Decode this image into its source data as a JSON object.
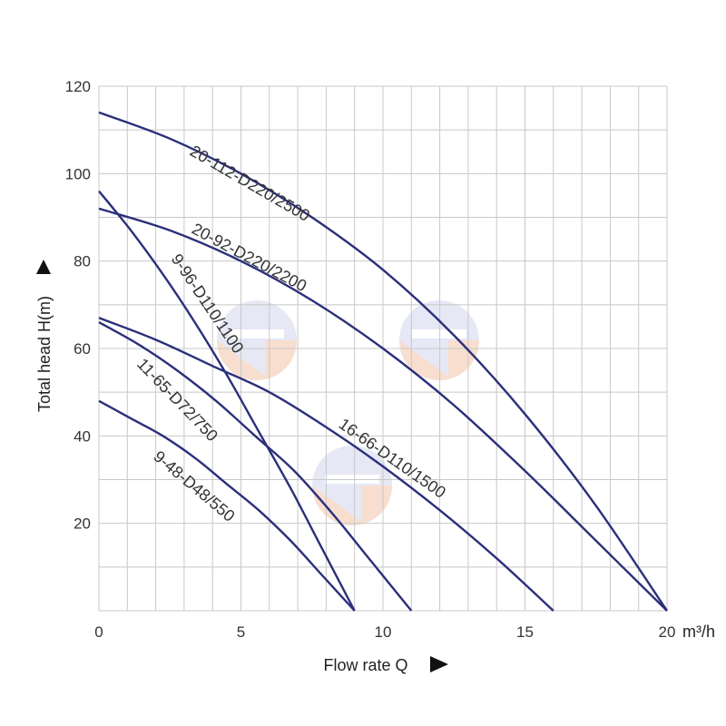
{
  "chart_data": {
    "type": "line",
    "xlabel": "Flow rate Q",
    "ylabel": "Total head H(m)",
    "x_unit": "m³/h",
    "xlim": [
      0,
      20
    ],
    "ylim": [
      0,
      120
    ],
    "x_ticks": [
      "0",
      "5",
      "10",
      "15",
      "20"
    ],
    "y_ticks": [
      "20",
      "40",
      "60",
      "80",
      "100",
      "120"
    ],
    "grid": true,
    "line_color": "#2b2f7a",
    "grid_color": "#c8c8c8",
    "series": [
      {
        "name": "20-112-D220/2500",
        "x": [
          0,
          2.5,
          5,
          7.5,
          10,
          12.5,
          15,
          17.5,
          20
        ],
        "y": [
          114,
          108,
          100,
          90,
          78,
          63,
          45,
          24,
          0
        ]
      },
      {
        "name": "20-92-D220/2200",
        "x": [
          0,
          2.5,
          5,
          7.5,
          10,
          12.5,
          15,
          17.5,
          20
        ],
        "y": [
          92,
          87,
          80,
          71,
          60,
          47,
          32,
          16,
          0
        ]
      },
      {
        "name": "9-96-D110/1100",
        "x": [
          0,
          1.125,
          2.25,
          3.375,
          4.5,
          5.625,
          6.75,
          7.875,
          9
        ],
        "y": [
          96,
          87,
          77,
          66,
          54,
          41,
          28,
          14,
          0
        ]
      },
      {
        "name": "16-66-D110/1500",
        "x": [
          0,
          2,
          4,
          6,
          8,
          10,
          12,
          14,
          16
        ],
        "y": [
          67,
          62,
          56,
          50,
          42,
          33,
          23,
          12,
          0
        ]
      },
      {
        "name": "11-65-D72/750",
        "x": [
          0,
          1.375,
          2.75,
          4.125,
          5.5,
          6.875,
          8.25,
          9.625,
          11
        ],
        "y": [
          66,
          61,
          55,
          48,
          40,
          32,
          22,
          11,
          0
        ]
      },
      {
        "name": "9-48-D48/550",
        "x": [
          0,
          1.125,
          2.25,
          3.375,
          4.5,
          5.625,
          6.75,
          7.875,
          9
        ],
        "y": [
          48,
          44,
          40,
          35,
          29,
          23,
          16,
          8,
          0
        ]
      }
    ]
  }
}
